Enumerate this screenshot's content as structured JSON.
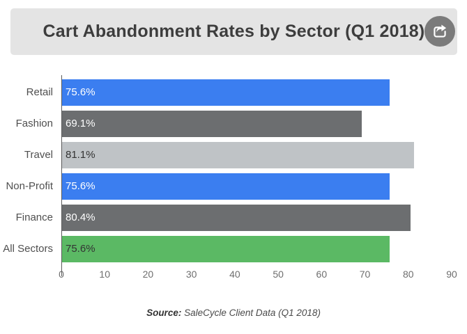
{
  "header": {
    "title": "Cart Abandonment Rates by Sector (Q1 2018)",
    "bg_color": "#e4e4e4",
    "title_color": "#3d3d3d",
    "share_button_color": "#7b7b7b",
    "share_icon": "share-export-icon"
  },
  "chart_data": {
    "type": "bar",
    "orientation": "horizontal",
    "title": "Cart Abandonment Rates by Sector (Q1 2018)",
    "categories": [
      "Retail",
      "Fashion",
      "Travel",
      "Non-Profit",
      "Finance",
      "All Sectors"
    ],
    "values": [
      75.6,
      69.1,
      81.1,
      75.6,
      80.4,
      75.6
    ],
    "value_labels": [
      "75.6%",
      "69.1%",
      "81.1%",
      "75.6%",
      "80.4%",
      "75.6%"
    ],
    "bar_colors": [
      "#3b7ef0",
      "#6c6e70",
      "#bfc3c6",
      "#3b7ef0",
      "#6c6e70",
      "#5bb964"
    ],
    "value_label_colors": [
      "#ffffff",
      "#ffffff",
      "#333333",
      "#ffffff",
      "#ffffff",
      "#333333"
    ],
    "x_ticks": [
      0,
      10,
      20,
      30,
      40,
      50,
      60,
      70,
      80,
      90
    ],
    "xlim": [
      0,
      90
    ],
    "grid": false,
    "legend": "none"
  },
  "footer": {
    "source_label": "Source:",
    "source_text": "SaleCycle Client Data (Q1 2018)"
  }
}
